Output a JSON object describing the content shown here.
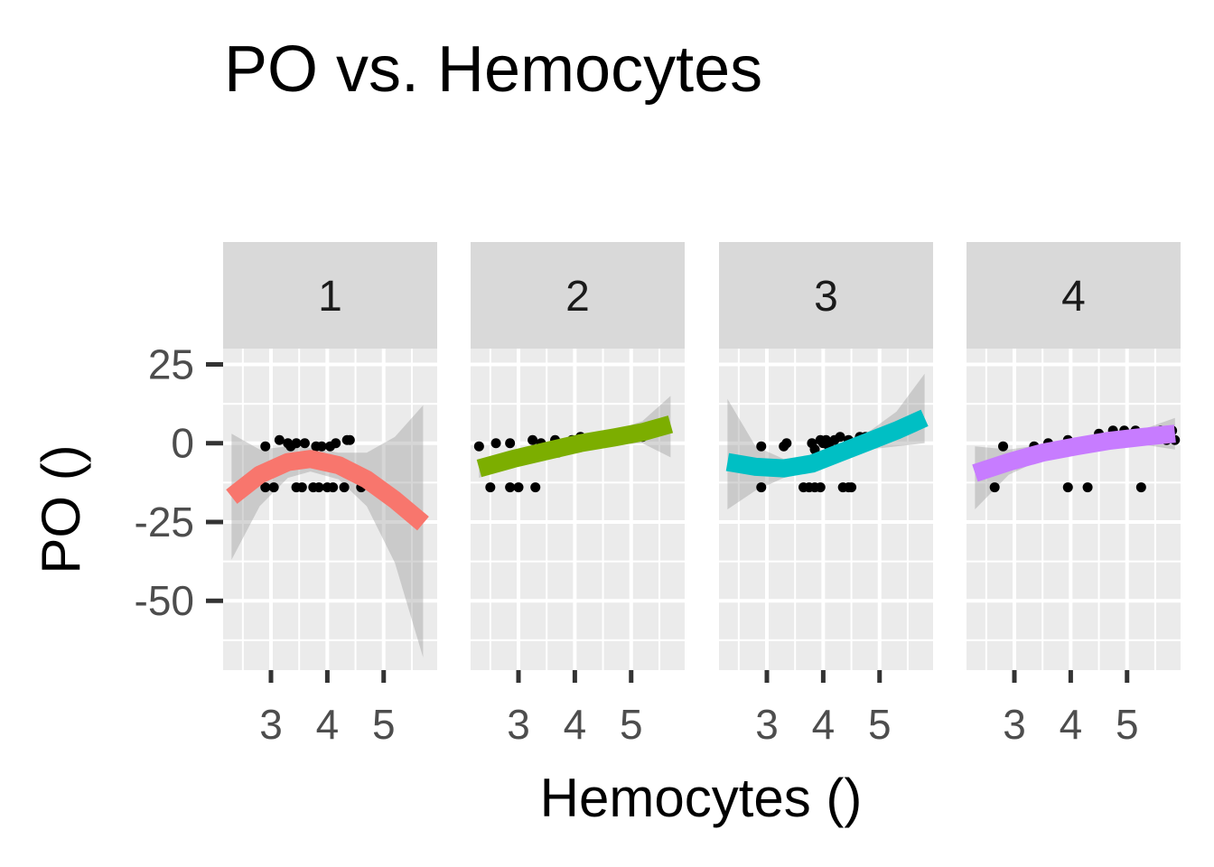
{
  "chart_data": {
    "type": "scatter",
    "title": "PO vs. Hemocytes",
    "xlabel": "Hemocytes ()",
    "ylabel": "PO ()",
    "xlim": [
      2.15,
      5.95
    ],
    "ylim": [
      -72,
      30
    ],
    "x_ticks": [
      3,
      4,
      5
    ],
    "x_tick_labels": [
      "3",
      "4",
      "5"
    ],
    "y_ticks": [
      25,
      0,
      -25,
      -50
    ],
    "y_tick_labels": [
      "25",
      "0",
      "-25",
      "-50"
    ],
    "grid": true,
    "legend": "none",
    "panels": [
      {
        "label": "1",
        "color": "#F8766D",
        "points": [
          [
            2.9,
            -1
          ],
          [
            2.9,
            -14
          ],
          [
            3.05,
            -14
          ],
          [
            3.15,
            1
          ],
          [
            3.3,
            0
          ],
          [
            3.35,
            -1
          ],
          [
            3.45,
            0
          ],
          [
            3.45,
            -14
          ],
          [
            3.55,
            -14
          ],
          [
            3.6,
            0
          ],
          [
            3.75,
            -14
          ],
          [
            3.8,
            -1
          ],
          [
            3.85,
            -14
          ],
          [
            3.9,
            -1
          ],
          [
            4.0,
            -14
          ],
          [
            4.05,
            -1
          ],
          [
            4.1,
            -14
          ],
          [
            4.15,
            0
          ],
          [
            4.3,
            -14
          ],
          [
            4.35,
            1
          ],
          [
            4.4,
            1
          ],
          [
            4.6,
            -14
          ]
        ],
        "fit": [
          [
            2.3,
            -17
          ],
          [
            2.8,
            -10
          ],
          [
            3.3,
            -6
          ],
          [
            3.7,
            -5
          ],
          [
            4.2,
            -7
          ],
          [
            4.7,
            -11.5
          ],
          [
            5.2,
            -18
          ],
          [
            5.7,
            -25.5
          ]
        ],
        "band": [
          [
            2.3,
            -37,
            3
          ],
          [
            2.8,
            -20,
            -2
          ],
          [
            3.3,
            -11,
            -1
          ],
          [
            3.7,
            -9,
            -1.5
          ],
          [
            4.2,
            -11.5,
            -3
          ],
          [
            4.7,
            -20,
            -3
          ],
          [
            5.2,
            -38,
            2
          ],
          [
            5.7,
            -68,
            12
          ]
        ]
      },
      {
        "label": "2",
        "color": "#7CAE00",
        "points": [
          [
            2.3,
            -1
          ],
          [
            2.5,
            -14
          ],
          [
            2.6,
            0
          ],
          [
            2.85,
            -14
          ],
          [
            2.85,
            0
          ],
          [
            3.0,
            -14
          ],
          [
            3.25,
            1
          ],
          [
            3.3,
            -14
          ],
          [
            3.4,
            0
          ],
          [
            3.65,
            1
          ],
          [
            3.7,
            -3
          ],
          [
            3.95,
            1
          ],
          [
            4.05,
            1
          ],
          [
            4.1,
            2
          ],
          [
            5.2,
            2
          ]
        ],
        "fit": [
          [
            2.3,
            -8
          ],
          [
            2.9,
            -5
          ],
          [
            3.5,
            -2.5
          ],
          [
            4.1,
            0
          ],
          [
            4.7,
            1.8
          ],
          [
            5.2,
            3.5
          ],
          [
            5.7,
            6
          ]
        ],
        "band": [
          [
            2.3,
            -11,
            -5
          ],
          [
            2.9,
            -7,
            -3
          ],
          [
            3.5,
            -4,
            -1
          ],
          [
            4.1,
            -1.5,
            1.5
          ],
          [
            4.7,
            -0.5,
            4
          ],
          [
            5.2,
            0,
            7
          ],
          [
            5.7,
            -4.5,
            15
          ]
        ]
      },
      {
        "label": "3",
        "color": "#00BFC4",
        "points": [
          [
            2.9,
            -1
          ],
          [
            2.9,
            -14
          ],
          [
            3.3,
            -1
          ],
          [
            3.35,
            0
          ],
          [
            3.65,
            -14
          ],
          [
            3.75,
            -14
          ],
          [
            3.8,
            0
          ],
          [
            3.85,
            -14
          ],
          [
            3.85,
            -2
          ],
          [
            3.95,
            1
          ],
          [
            3.95,
            -14
          ],
          [
            4.0,
            0
          ],
          [
            4.05,
            1
          ],
          [
            4.1,
            -1
          ],
          [
            4.2,
            1
          ],
          [
            4.3,
            2
          ],
          [
            4.35,
            -14
          ],
          [
            4.45,
            1
          ],
          [
            4.45,
            -14
          ],
          [
            4.5,
            -14
          ],
          [
            4.65,
            2
          ],
          [
            4.75,
            2
          ],
          [
            4.75,
            1
          ],
          [
            4.9,
            2
          ]
        ],
        "fit": [
          [
            2.3,
            -6
          ],
          [
            2.8,
            -7.5
          ],
          [
            3.3,
            -8
          ],
          [
            3.8,
            -6.5
          ],
          [
            4.3,
            -3
          ],
          [
            4.8,
            0.5
          ],
          [
            5.3,
            4
          ],
          [
            5.8,
            8
          ]
        ],
        "band": [
          [
            2.3,
            -21,
            14
          ],
          [
            2.8,
            -15,
            -1
          ],
          [
            3.3,
            -11,
            -5
          ],
          [
            3.8,
            -9,
            -4
          ],
          [
            4.3,
            -6,
            -0.5
          ],
          [
            4.8,
            -2,
            3.5
          ],
          [
            5.3,
            -1,
            10
          ],
          [
            5.8,
            0,
            22
          ]
        ]
      },
      {
        "label": "4",
        "color": "#C77CFF",
        "points": [
          [
            2.65,
            -14
          ],
          [
            2.8,
            -1
          ],
          [
            3.35,
            -1
          ],
          [
            3.6,
            0
          ],
          [
            3.95,
            1
          ],
          [
            3.95,
            -14
          ],
          [
            4.3,
            -14
          ],
          [
            4.5,
            3
          ],
          [
            4.75,
            4
          ],
          [
            4.95,
            4
          ],
          [
            5.1,
            3
          ],
          [
            5.15,
            4
          ],
          [
            5.25,
            -14
          ],
          [
            5.4,
            3
          ],
          [
            5.5,
            3
          ],
          [
            5.6,
            4
          ],
          [
            5.7,
            1
          ],
          [
            5.8,
            4
          ],
          [
            5.85,
            1
          ]
        ],
        "fit": [
          [
            2.3,
            -9.5
          ],
          [
            2.9,
            -6
          ],
          [
            3.5,
            -3
          ],
          [
            4.1,
            -1
          ],
          [
            4.7,
            0.8
          ],
          [
            5.3,
            2
          ],
          [
            5.85,
            3
          ]
        ],
        "band": [
          [
            2.3,
            -21,
            -1
          ],
          [
            2.9,
            -10,
            -2
          ],
          [
            3.5,
            -5,
            -0.5
          ],
          [
            4.1,
            -3,
            1
          ],
          [
            4.7,
            -1.5,
            3
          ],
          [
            5.3,
            -0.5,
            4.5
          ],
          [
            5.85,
            -2,
            8
          ]
        ]
      }
    ]
  }
}
